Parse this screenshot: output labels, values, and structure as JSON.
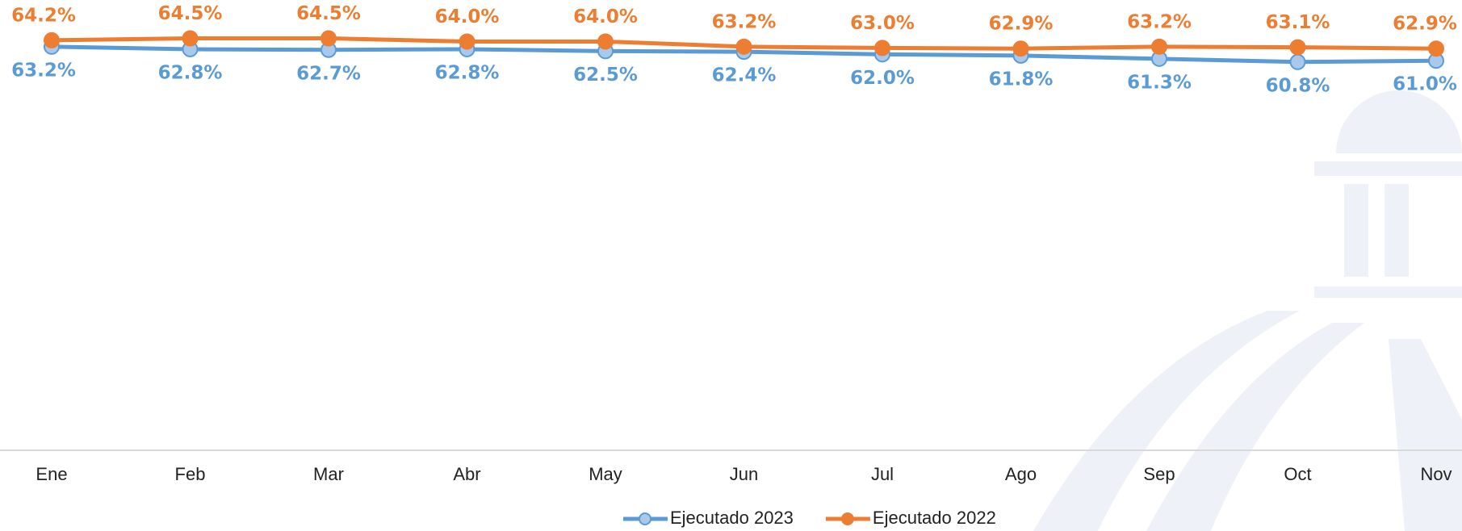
{
  "chart_data": {
    "type": "line",
    "categories": [
      "Ene",
      "Feb",
      "Mar",
      "Abr",
      "May",
      "Jun",
      "Jul",
      "Ago",
      "Sep",
      "Oct",
      "Nov"
    ],
    "series": [
      {
        "name": "Ejecutado 2023",
        "color": "#5b9bd5",
        "values": [
          63.2,
          62.8,
          62.7,
          62.8,
          62.5,
          62.4,
          62.0,
          61.8,
          61.3,
          60.8,
          61.0
        ],
        "value_labels": [
          "63.2%",
          "62.8%",
          "62.7%",
          "62.8%",
          "62.5%",
          "62.4%",
          "62.0%",
          "61.8%",
          "61.3%",
          "60.8%",
          "61.0%"
        ]
      },
      {
        "name": "Ejecutado 2022",
        "color": "#ed7d31",
        "values": [
          64.2,
          64.5,
          64.5,
          64.0,
          64.0,
          63.2,
          63.0,
          62.9,
          63.2,
          63.1,
          62.9
        ],
        "value_labels": [
          "64.2%",
          "64.5%",
          "64.5%",
          "64.0%",
          "64.0%",
          "63.2%",
          "63.0%",
          "62.9%",
          "63.2%",
          "63.1%",
          "62.9%"
        ]
      }
    ],
    "ylim": [
      0,
      70
    ],
    "legend": "bottom"
  }
}
